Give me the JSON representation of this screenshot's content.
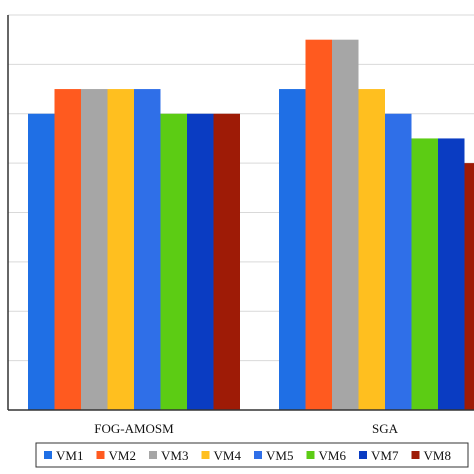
{
  "chart_data": {
    "type": "bar",
    "title": "",
    "xlabel": "",
    "ylabel": "",
    "categories": [
      "FOG-AMOSM",
      "SGA"
    ],
    "ylim": [
      0,
      8
    ],
    "grid": true,
    "legend_position": "bottom",
    "series": [
      {
        "name": "VM1",
        "color": "#1f6fe5",
        "values": [
          6.0,
          6.5
        ]
      },
      {
        "name": "VM2",
        "color": "#ff5a1f",
        "values": [
          6.5,
          7.5
        ]
      },
      {
        "name": "VM3",
        "color": "#a6a6a6",
        "values": [
          6.5,
          7.5
        ]
      },
      {
        "name": "VM4",
        "color": "#ffbf1f",
        "values": [
          6.5,
          6.5
        ]
      },
      {
        "name": "VM5",
        "color": "#2f6fe8",
        "values": [
          6.5,
          6.0
        ]
      },
      {
        "name": "VM6",
        "color": "#5ccc14",
        "values": [
          6.0,
          5.5
        ]
      },
      {
        "name": "VM7",
        "color": "#0a3cc2",
        "values": [
          6.0,
          5.5
        ]
      },
      {
        "name": "VM8",
        "color": "#9e1b06",
        "values": [
          6.0,
          5.0
        ]
      }
    ]
  }
}
